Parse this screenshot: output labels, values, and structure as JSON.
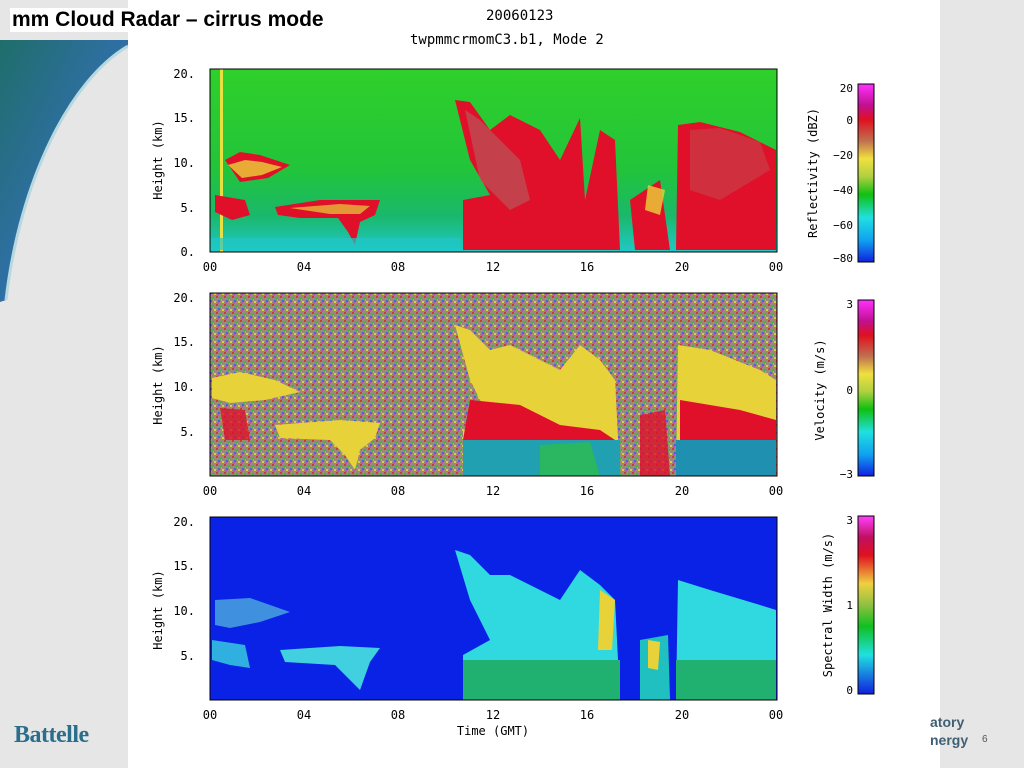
{
  "slide": {
    "title": "mm Cloud Radar – cirrus mode",
    "page_number": "6",
    "logo_text": "Battelle",
    "footer_lab_line1": "atory",
    "footer_lab_line2": "nergy"
  },
  "figure": {
    "date": "20060123",
    "subtitle": "twpmmcrmomC3.b1,  Mode 2",
    "x_label": "Time (GMT)",
    "x_ticks": [
      "00",
      "04",
      "08",
      "12",
      "16",
      "20",
      "00"
    ],
    "panels": [
      {
        "y_label": "Height (km)",
        "y_ticks": [
          "20.",
          "15.",
          "10.",
          "5.",
          "0."
        ],
        "colorbar_label": "Reflectivity (dBZ)",
        "colorbar_ticks": [
          "20",
          "0",
          "−20",
          "−40",
          "−60",
          "−80"
        ]
      },
      {
        "y_label": "Height (km)",
        "y_ticks": [
          "20.",
          "15.",
          "10.",
          "5."
        ],
        "colorbar_label": "Velocity (m/s)",
        "colorbar_ticks": [
          "3",
          "0",
          "−3"
        ]
      },
      {
        "y_label": "Height (km)",
        "y_ticks": [
          "20.",
          "15.",
          "10.",
          "5."
        ],
        "colorbar_label": "Spectral Width (m/s)",
        "colorbar_ticks": [
          "3",
          "1",
          "0"
        ]
      }
    ]
  },
  "colors": {
    "reflectivity_bg": "#22cc22",
    "velocity_bg": "#8a9a78",
    "width_bg": "#0a22e6",
    "cloud_red": "#e0102a",
    "cloud_yellow": "#e8d23a",
    "cloud_cyan": "#30d8e0"
  }
}
